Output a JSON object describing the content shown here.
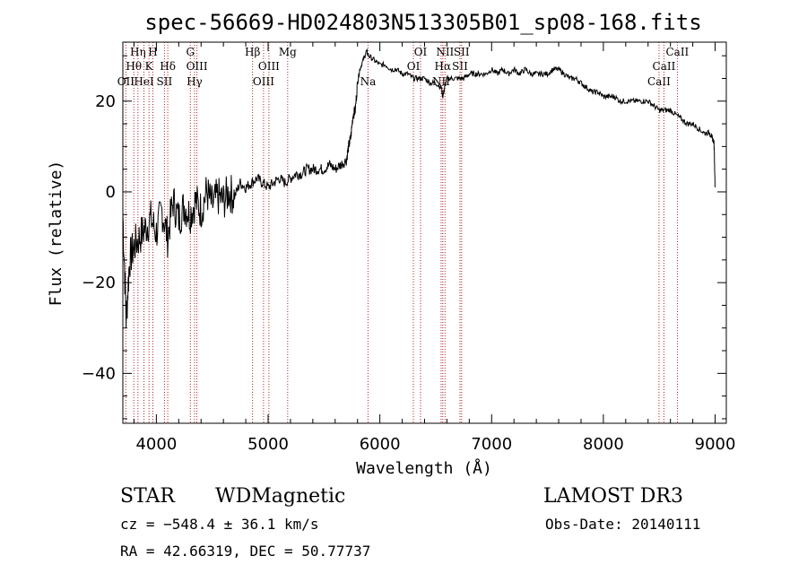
{
  "chart_data": {
    "type": "line",
    "title": "spec-56669-HD024803N513305B01_sp08-168.fits",
    "xlabel": "Wavelength (Å)",
    "ylabel": "Flux (relative)",
    "xlim": [
      3700,
      9100
    ],
    "ylim": [
      -51,
      33
    ],
    "x_ticks": [
      4000,
      5000,
      6000,
      7000,
      8000,
      9000
    ],
    "y_ticks": [
      -40,
      -20,
      0,
      20
    ],
    "grid": false,
    "line_color": "#000000",
    "marker_color": "#b22222",
    "series": [
      {
        "x": [
          3700,
          3730,
          3760,
          3800,
          3850,
          3900,
          3950,
          4000,
          4050,
          4100,
          4150,
          4200,
          4250,
          4300,
          4350,
          4400,
          4450,
          4500,
          4550,
          4600,
          4650,
          4700,
          4750,
          4800,
          4850,
          4900,
          4950,
          5000,
          5050,
          5100,
          5150,
          5200,
          5250,
          5300,
          5350,
          5400,
          5450,
          5500,
          5550,
          5600,
          5650,
          5700,
          5720,
          5740,
          5760,
          5780,
          5800,
          5820,
          5850,
          5880,
          5900,
          5950,
          6000,
          6050,
          6100,
          6150,
          6200,
          6250,
          6300,
          6350,
          6400,
          6450,
          6500,
          6550,
          6563,
          6580,
          6600,
          6650,
          6700,
          6750,
          6800,
          6850,
          6900,
          6950,
          7000,
          7050,
          7100,
          7150,
          7200,
          7250,
          7300,
          7350,
          7400,
          7450,
          7500,
          7550,
          7600,
          7650,
          7700,
          7750,
          7800,
          7850,
          7900,
          7950,
          8000,
          8050,
          8100,
          8150,
          8200,
          8250,
          8300,
          8350,
          8400,
          8450,
          8500,
          8550,
          8600,
          8650,
          8700,
          8750,
          8800,
          8850,
          8900,
          8950,
          8970,
          8990,
          9000
        ],
        "y": [
          -5,
          -28,
          -15,
          -12,
          -10,
          -8,
          -6,
          -9,
          -4,
          -10,
          -2,
          -6,
          -3,
          -5,
          -2,
          -4,
          0,
          -3,
          -1,
          -2,
          0,
          -1,
          2,
          1,
          2,
          3,
          2,
          1,
          2,
          3,
          2,
          3,
          4,
          4,
          5,
          5,
          5,
          5,
          6,
          5,
          6,
          7,
          10,
          12,
          17,
          18,
          24,
          27,
          29,
          31,
          30,
          29,
          28,
          28,
          27,
          27,
          26,
          26,
          25,
          25,
          25,
          24,
          24,
          23,
          21,
          23,
          25,
          25,
          25,
          25,
          26,
          26,
          26,
          26,
          27,
          26,
          27,
          26,
          27,
          26,
          27,
          26,
          26,
          26,
          26,
          27,
          27,
          26,
          25,
          25,
          24,
          23,
          22,
          22,
          21,
          21,
          21,
          20,
          20,
          20,
          20,
          20,
          20,
          19,
          18,
          18,
          18,
          17,
          16,
          15,
          15,
          14,
          13,
          13,
          12,
          11,
          1
        ]
      }
    ],
    "line_markers": [
      {
        "label": "OII",
        "x": 3727,
        "row": 3
      },
      {
        "label": "Hθ",
        "x": 3798,
        "row": 2
      },
      {
        "label": "Hη",
        "x": 3835,
        "row": 1
      },
      {
        "label": "HeI",
        "x": 3889,
        "row": 3
      },
      {
        "label": "K",
        "x": 3934,
        "row": 2
      },
      {
        "label": "H",
        "x": 3969,
        "row": 1
      },
      {
        "label": "SII",
        "x": 4072,
        "row": 3
      },
      {
        "label": "Hδ",
        "x": 4102,
        "row": 2
      },
      {
        "label": "G",
        "x": 4304,
        "row": 1
      },
      {
        "label": "Hγ",
        "x": 4341,
        "row": 3
      },
      {
        "label": "OIII",
        "x": 4363,
        "row": 2
      },
      {
        "label": "Hβ",
        "x": 4861,
        "row": 1
      },
      {
        "label": "OIII",
        "x": 4959,
        "row": 3
      },
      {
        "label": "OIII",
        "x": 5007,
        "row": 2
      },
      {
        "label": "Mg",
        "x": 5175,
        "row": 1
      },
      {
        "label": "Na",
        "x": 5894,
        "row": 3
      },
      {
        "label": "OI",
        "x": 6300,
        "row": 2
      },
      {
        "label": "OI",
        "x": 6364,
        "row": 1
      },
      {
        "label": "NII",
        "x": 6548,
        "row": 3
      },
      {
        "label": "Hα",
        "x": 6563,
        "row": 2
      },
      {
        "label": "NII",
        "x": 6583,
        "row": 1
      },
      {
        "label": "SII",
        "x": 6717,
        "row": 2
      },
      {
        "label": "SII",
        "x": 6731,
        "row": 1
      },
      {
        "label": "CaII",
        "x": 8498,
        "row": 3
      },
      {
        "label": "CaII",
        "x": 8542,
        "row": 2
      },
      {
        "label": "CaII",
        "x": 8662,
        "row": 1
      }
    ]
  },
  "footer": {
    "object_type": "STAR",
    "subclass": "WDMagnetic",
    "survey": "LAMOST DR3",
    "redshift": "cz = −548.4 ± 36.1 km/s",
    "obs_date": "Obs-Date: 20140111",
    "coords": "RA =  42.66319, DEC =  50.77737"
  }
}
